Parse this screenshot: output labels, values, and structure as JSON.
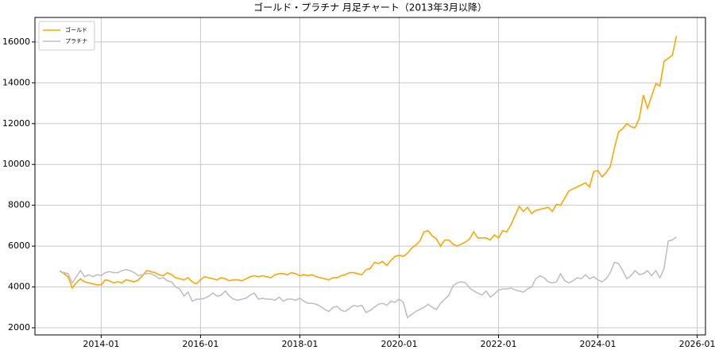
{
  "chart_data": {
    "type": "line",
    "title": "ゴールド・プラチナ 月足チャート（2013年3月以降）",
    "x": [
      "2013-03",
      "2013-04",
      "2013-05",
      "2013-06",
      "2013-07",
      "2013-08",
      "2013-09",
      "2013-10",
      "2013-11",
      "2013-12",
      "2014-01",
      "2014-02",
      "2014-03",
      "2014-04",
      "2014-05",
      "2014-06",
      "2014-07",
      "2014-08",
      "2014-09",
      "2014-10",
      "2014-11",
      "2014-12",
      "2015-01",
      "2015-02",
      "2015-03",
      "2015-04",
      "2015-05",
      "2015-06",
      "2015-07",
      "2015-08",
      "2015-09",
      "2015-10",
      "2015-11",
      "2015-12",
      "2016-01",
      "2016-02",
      "2016-03",
      "2016-04",
      "2016-05",
      "2016-06",
      "2016-07",
      "2016-08",
      "2016-09",
      "2016-10",
      "2016-11",
      "2016-12",
      "2017-01",
      "2017-02",
      "2017-03",
      "2017-04",
      "2017-05",
      "2017-06",
      "2017-07",
      "2017-08",
      "2017-09",
      "2017-10",
      "2017-11",
      "2017-12",
      "2018-01",
      "2018-02",
      "2018-03",
      "2018-04",
      "2018-05",
      "2018-06",
      "2018-07",
      "2018-08",
      "2018-09",
      "2018-10",
      "2018-11",
      "2018-12",
      "2019-01",
      "2019-02",
      "2019-03",
      "2019-04",
      "2019-05",
      "2019-06",
      "2019-07",
      "2019-08",
      "2019-09",
      "2019-10",
      "2019-11",
      "2019-12",
      "2020-01",
      "2020-02",
      "2020-03",
      "2020-04",
      "2020-05",
      "2020-06",
      "2020-07",
      "2020-08",
      "2020-09",
      "2020-10",
      "2020-11",
      "2020-12",
      "2021-01",
      "2021-02",
      "2021-03",
      "2021-04",
      "2021-05",
      "2021-06",
      "2021-07",
      "2021-08",
      "2021-09",
      "2021-10",
      "2021-11",
      "2021-12",
      "2022-01",
      "2022-02",
      "2022-03",
      "2022-04",
      "2022-05",
      "2022-06",
      "2022-07",
      "2022-08",
      "2022-09",
      "2022-10",
      "2022-11",
      "2022-12",
      "2023-01",
      "2023-02",
      "2023-03",
      "2023-04",
      "2023-05",
      "2023-06",
      "2023-07",
      "2023-08",
      "2023-09",
      "2023-10",
      "2023-11",
      "2023-12",
      "2024-01",
      "2024-02",
      "2024-03",
      "2024-04",
      "2024-05",
      "2024-06",
      "2024-07",
      "2024-08",
      "2024-09",
      "2024-10",
      "2024-11",
      "2024-12",
      "2025-01",
      "2025-02",
      "2025-03",
      "2025-04",
      "2025-05",
      "2025-06",
      "2025-07",
      "2025-08"
    ],
    "series": [
      {
        "name": "ゴールド",
        "color": "#ffa500",
        "values": [
          4800,
          4650,
          4500,
          3950,
          4200,
          4400,
          4250,
          4200,
          4150,
          4100,
          4100,
          4350,
          4300,
          4200,
          4250,
          4200,
          4350,
          4300,
          4250,
          4350,
          4550,
          4800,
          4750,
          4700,
          4600,
          4550,
          4700,
          4600,
          4450,
          4400,
          4350,
          4450,
          4250,
          4150,
          4350,
          4500,
          4450,
          4400,
          4350,
          4450,
          4400,
          4300,
          4350,
          4350,
          4300,
          4400,
          4500,
          4550,
          4500,
          4550,
          4500,
          4450,
          4600,
          4650,
          4650,
          4600,
          4700,
          4650,
          4550,
          4600,
          4550,
          4600,
          4500,
          4450,
          4400,
          4350,
          4450,
          4450,
          4550,
          4600,
          4700,
          4700,
          4650,
          4600,
          4850,
          4900,
          5200,
          5150,
          5250,
          5050,
          5300,
          5500,
          5550,
          5500,
          5650,
          5900,
          6050,
          6250,
          6700,
          6750,
          6500,
          6350,
          6000,
          6300,
          6300,
          6100,
          6000,
          6100,
          6200,
          6350,
          6700,
          6400,
          6400,
          6400,
          6300,
          6550,
          6400,
          6750,
          6700,
          7050,
          7500,
          7950,
          7700,
          7900,
          7600,
          7750,
          7800,
          7850,
          7900,
          7700,
          8050,
          8000,
          8350,
          8700,
          8800,
          8900,
          9000,
          9100,
          8900,
          9650,
          9700,
          9400,
          9600,
          9900,
          10800,
          11600,
          11750,
          12000,
          11850,
          11800,
          12250,
          13400,
          12750,
          13350,
          13950,
          13850,
          15050,
          15200,
          15350,
          16300
        ]
      },
      {
        "name": "プラチナ",
        "color": "#c0c0c0",
        "values": [
          4750,
          4700,
          4650,
          4200,
          4500,
          4800,
          4500,
          4600,
          4500,
          4600,
          4550,
          4700,
          4750,
          4700,
          4700,
          4800,
          4850,
          4800,
          4700,
          4550,
          4600,
          4650,
          4650,
          4550,
          4400,
          4450,
          4300,
          4250,
          4000,
          3900,
          3550,
          3750,
          3300,
          3400,
          3400,
          3450,
          3550,
          3700,
          3550,
          3600,
          3800,
          3550,
          3400,
          3350,
          3400,
          3450,
          3600,
          3700,
          3400,
          3450,
          3400,
          3400,
          3350,
          3500,
          3300,
          3400,
          3400,
          3350,
          3450,
          3300,
          3200,
          3200,
          3150,
          3050,
          2900,
          2800,
          3000,
          3050,
          2850,
          2800,
          2950,
          3100,
          3050,
          3100,
          2750,
          2850,
          3000,
          3150,
          3200,
          3100,
          3300,
          3250,
          3400,
          3250,
          2500,
          2650,
          2800,
          2900,
          3000,
          3150,
          3000,
          2900,
          3200,
          3400,
          3600,
          4050,
          4200,
          4250,
          4200,
          3950,
          3800,
          3700,
          3600,
          3800,
          3500,
          3650,
          3850,
          3900,
          3900,
          3950,
          3850,
          3800,
          3750,
          3900,
          4000,
          4400,
          4550,
          4450,
          4250,
          4200,
          4250,
          4650,
          4300,
          4200,
          4300,
          4450,
          4400,
          4600,
          4400,
          4500,
          4350,
          4250,
          4400,
          4700,
          5200,
          5150,
          4800,
          4400,
          4550,
          4800,
          4600,
          4650,
          4800,
          4550,
          4800,
          4450,
          4900,
          6250,
          6300,
          6450
        ]
      }
    ],
    "xlim": [
      "2012-09",
      "2026-03"
    ],
    "xticks": [
      "2014-01",
      "2016-01",
      "2018-01",
      "2020-01",
      "2022-01",
      "2024-01",
      "2026-01"
    ],
    "ylim": [
      1650,
      17200
    ],
    "yticks": [
      2000,
      4000,
      6000,
      8000,
      10000,
      12000,
      14000,
      16000
    ],
    "grid": true,
    "legend": "upper-left"
  }
}
